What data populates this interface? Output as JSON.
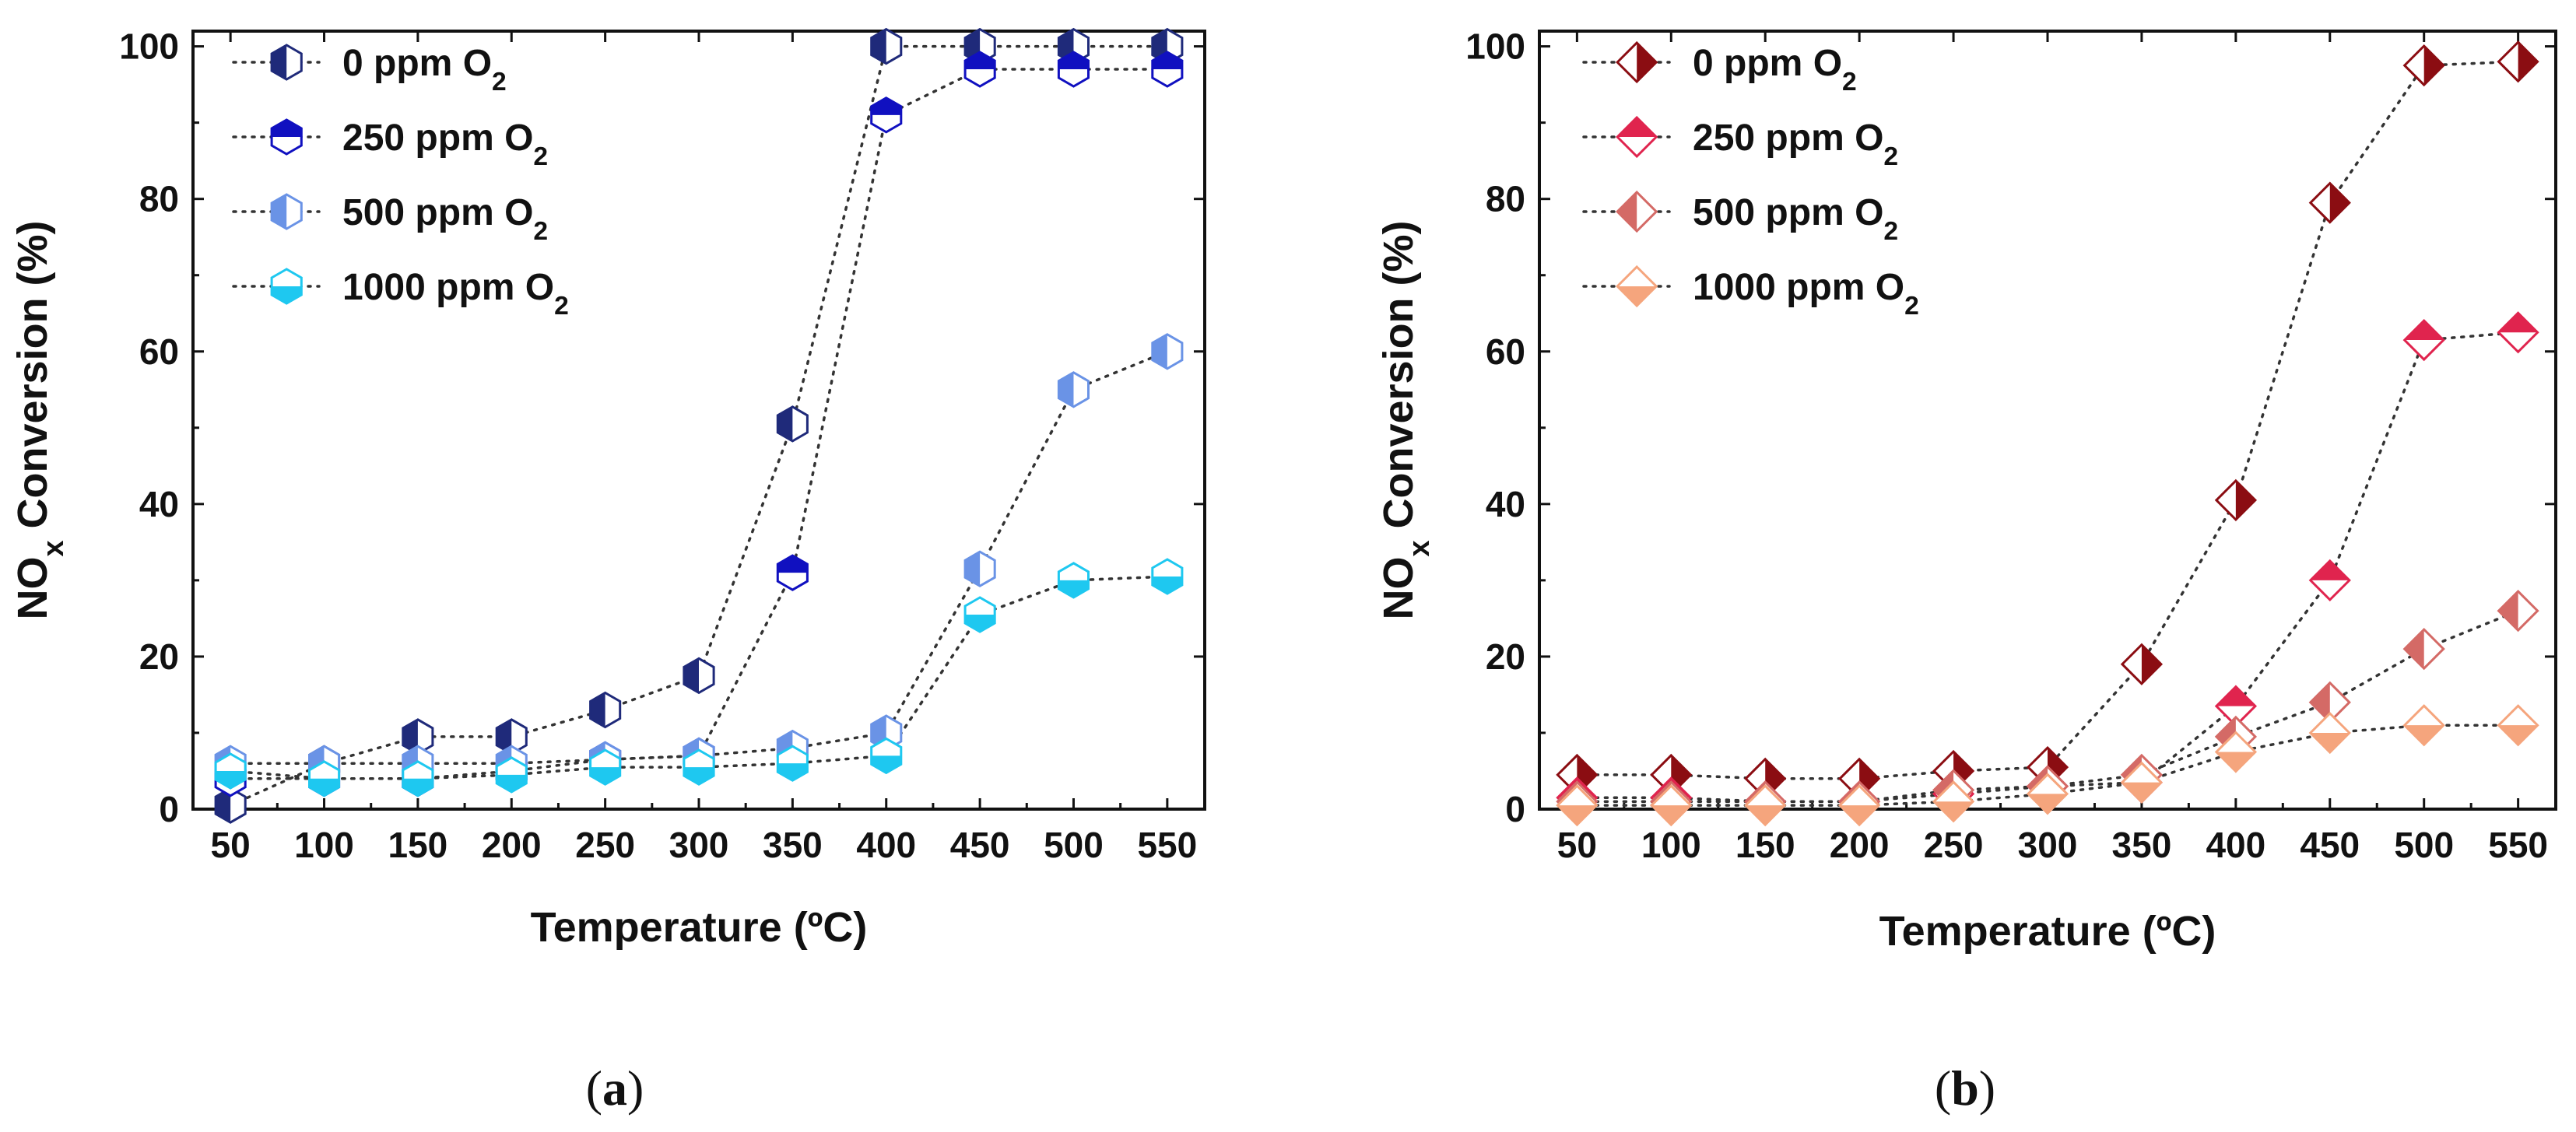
{
  "chart_data": [
    {
      "type": "line",
      "panel_label_prefix": "(",
      "panel_label": "a",
      "panel_label_suffix": ")",
      "title": "",
      "xlabel": "Temperature (ºC)",
      "ylabel_main": "NO",
      "ylabel_sub": "x",
      "ylabel_rest": " Conversion (%)",
      "xlim": [
        30,
        570
      ],
      "ylim": [
        0,
        102
      ],
      "x_ticks": [
        50,
        100,
        150,
        200,
        250,
        300,
        350,
        400,
        450,
        500,
        550
      ],
      "y_ticks": [
        0,
        20,
        40,
        60,
        80,
        100
      ],
      "legend_position": "top-left",
      "marker": "hexagon",
      "series": [
        {
          "name_main": "0 ppm O",
          "name_sub": "2",
          "color": "#1f2a7a",
          "fill_style": "left",
          "x": [
            50,
            100,
            150,
            200,
            250,
            300,
            350,
            400,
            450,
            500,
            550
          ],
          "values": [
            0.5,
            6,
            9.5,
            9.5,
            13,
            17.5,
            50.5,
            100,
            100,
            100,
            100
          ]
        },
        {
          "name_main": "250 ppm O",
          "name_sub": "2",
          "color": "#1010c0",
          "fill_style": "top",
          "x": [
            50,
            100,
            150,
            200,
            250,
            300,
            350,
            400,
            450,
            500,
            550
          ],
          "values": [
            4,
            4,
            4,
            5,
            6.5,
            7,
            31,
            91,
            97,
            97,
            97
          ]
        },
        {
          "name_main": "500 ppm O",
          "name_sub": "2",
          "color": "#6a93e6",
          "fill_style": "left",
          "x": [
            50,
            100,
            150,
            200,
            250,
            300,
            350,
            400,
            450,
            500,
            550
          ],
          "values": [
            6,
            6,
            6,
            6,
            6.5,
            7,
            8,
            10,
            31.5,
            55,
            60
          ]
        },
        {
          "name_main": "1000 ppm O",
          "name_sub": "2",
          "color": "#1ec8f0",
          "fill_style": "bottom",
          "x": [
            50,
            100,
            150,
            200,
            250,
            300,
            350,
            400,
            450,
            500,
            550
          ],
          "values": [
            5,
            4,
            4,
            4.5,
            5.5,
            5.5,
            6,
            7,
            25.5,
            30,
            30.5
          ]
        }
      ]
    },
    {
      "type": "line",
      "panel_label_prefix": "(",
      "panel_label": "b",
      "panel_label_suffix": ")",
      "title": "",
      "xlabel": "Temperature (ºC)",
      "ylabel_main": "NO",
      "ylabel_sub": "x",
      "ylabel_rest": " Conversion (%)",
      "xlim": [
        30,
        570
      ],
      "ylim": [
        0,
        102
      ],
      "x_ticks": [
        50,
        100,
        150,
        200,
        250,
        300,
        350,
        400,
        450,
        500,
        550
      ],
      "y_ticks": [
        0,
        20,
        40,
        60,
        80,
        100
      ],
      "legend_position": "top-left",
      "marker": "diamond",
      "series": [
        {
          "name_main": "0 ppm O",
          "name_sub": "2",
          "color": "#8b0d12",
          "fill_style": "right",
          "x": [
            50,
            100,
            150,
            200,
            250,
            300,
            350,
            400,
            450,
            500,
            550
          ],
          "values": [
            4.5,
            4.5,
            4,
            4,
            5,
            5.5,
            19,
            40.5,
            79.5,
            97.5,
            98
          ]
        },
        {
          "name_main": "250 ppm O",
          "name_sub": "2",
          "color": "#e0244e",
          "fill_style": "top",
          "x": [
            50,
            100,
            150,
            200,
            250,
            300,
            350,
            400,
            450,
            500,
            550
          ],
          "values": [
            1.5,
            1.5,
            1,
            1,
            2,
            3,
            3.5,
            13.5,
            30,
            61.5,
            62.5
          ]
        },
        {
          "name_main": "500 ppm O",
          "name_sub": "2",
          "color": "#d46a66",
          "fill_style": "left",
          "x": [
            50,
            100,
            150,
            200,
            250,
            300,
            350,
            400,
            450,
            500,
            550
          ],
          "values": [
            1,
            1,
            1,
            1,
            2.5,
            3,
            4.5,
            9.5,
            14,
            21,
            26
          ]
        },
        {
          "name_main": "1000 ppm O",
          "name_sub": "2",
          "color": "#f5a57d",
          "fill_style": "bottom",
          "x": [
            50,
            100,
            150,
            200,
            250,
            300,
            350,
            400,
            450,
            500,
            550
          ],
          "values": [
            0.5,
            0.5,
            0.5,
            0.5,
            1,
            2,
            3.5,
            7.5,
            10,
            11,
            11
          ]
        }
      ]
    }
  ]
}
